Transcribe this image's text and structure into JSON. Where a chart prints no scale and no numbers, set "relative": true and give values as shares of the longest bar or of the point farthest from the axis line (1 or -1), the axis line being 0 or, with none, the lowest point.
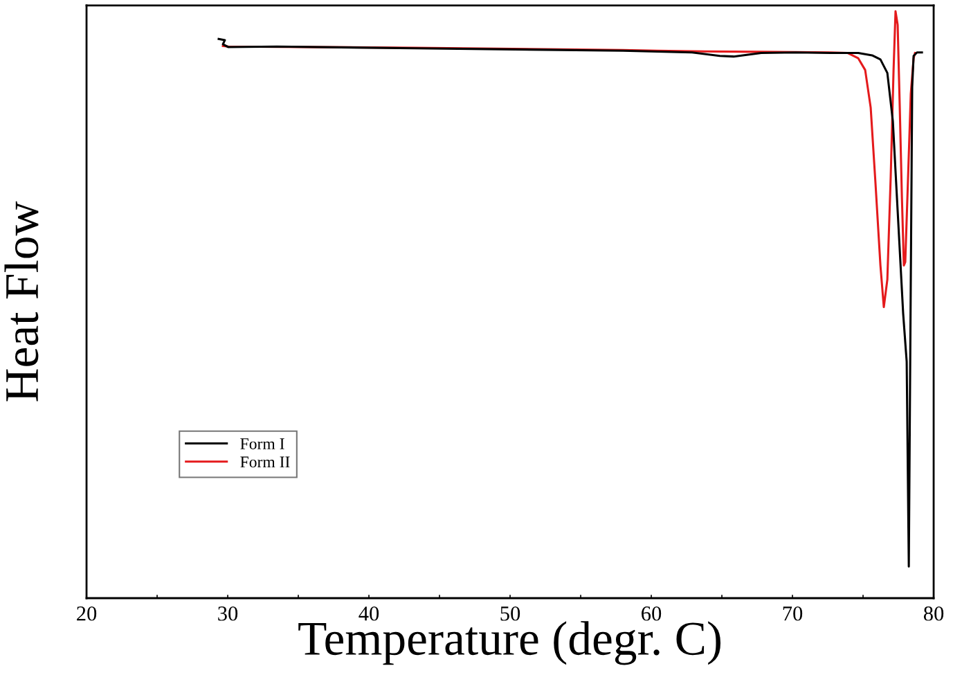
{
  "chart_data": {
    "type": "line",
    "xlabel": "Temperature (degr. C)",
    "ylabel": "Heat Flow",
    "relative": true,
    "xlim": [
      20,
      80
    ],
    "xticks": [
      20,
      {
        "value": 25,
        "label": null
      },
      30,
      {
        "value": 35,
        "label": null
      },
      40,
      {
        "value": 45,
        "label": null
      },
      50,
      {
        "value": 55,
        "label": null
      },
      60,
      {
        "value": 65,
        "label": null
      },
      70,
      {
        "value": 75,
        "label": null
      },
      80
    ],
    "grid": false,
    "legend": "bottom left",
    "marker": "none",
    "line_style": "solid",
    "series": [
      {
        "name": "Form I",
        "color": "#000000",
        "x": [
          29.36,
          29.8,
          29.66,
          30.05,
          33.48,
          43.28,
          57.99,
          62.89,
          64.85,
          65.83,
          67.79,
          70.25,
          72.7,
          74.66,
          75.64,
          76.23,
          76.72,
          77.11,
          77.45,
          77.84,
          78.09,
          78.24,
          78.38,
          78.48,
          78.58,
          78.82,
          79.17
        ],
        "values": [
          0.953,
          0.951,
          0.944,
          0.939,
          0.94,
          0.937,
          0.933,
          0.93,
          0.924,
          0.923,
          0.929,
          0.93,
          0.929,
          0.929,
          0.925,
          0.918,
          0.895,
          0.813,
          0.66,
          0.485,
          0.403,
          0.054,
          0.54,
          0.871,
          0.924,
          0.93,
          0.93
        ]
      },
      {
        "name": "Form II",
        "color": "#e41a1c",
        "x": [
          29.66,
          30.05,
          43.28,
          57.99,
          60.44,
          62.89,
          67.79,
          72.7,
          73.92,
          74.66,
          75.15,
          75.54,
          75.88,
          76.23,
          76.47,
          76.72,
          76.96,
          77.16,
          77.3,
          77.45,
          77.6,
          77.75,
          77.89,
          77.99,
          78.19,
          78.38,
          78.58,
          78.68
        ],
        "values": [
          0.941,
          0.94,
          0.938,
          0.934,
          0.933,
          0.932,
          0.931,
          0.93,
          0.929,
          0.92,
          0.9,
          0.836,
          0.707,
          0.567,
          0.496,
          0.543,
          0.719,
          0.9,
          1.0,
          0.977,
          0.836,
          0.684,
          0.567,
          0.573,
          0.719,
          0.859,
          0.92,
          0.929
        ]
      }
    ]
  }
}
